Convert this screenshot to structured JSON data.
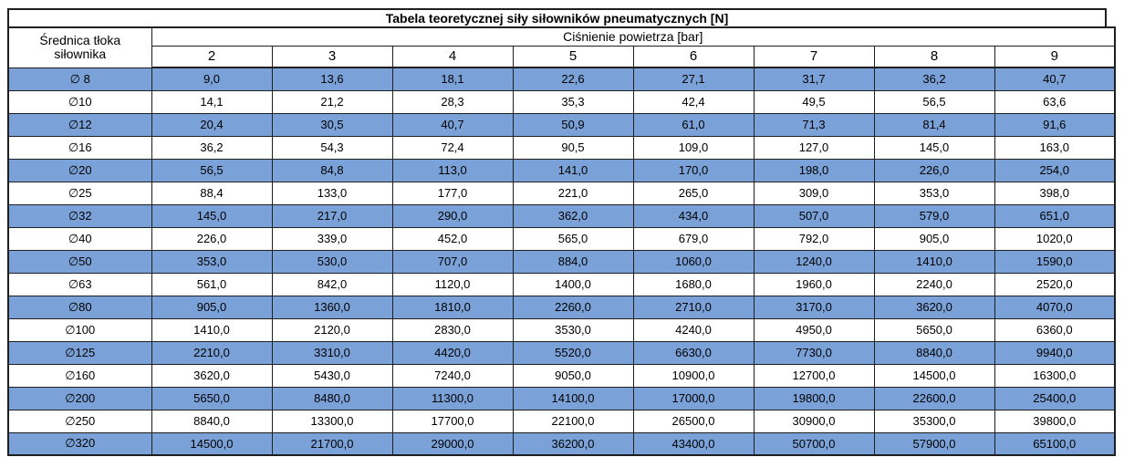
{
  "title": "Tabela teoretycznej siły siłowników pneumatycznych [N]",
  "table": {
    "row_header_line1": "Średnica tłoka",
    "row_header_line2": "siłownika",
    "col_group_header": "Ciśnienie powietrza [bar]",
    "pressure_columns": [
      "2",
      "3",
      "4",
      "5",
      "6",
      "7",
      "8",
      "9"
    ],
    "rows": [
      {
        "diameter": "∅ 8",
        "values": [
          "9,0",
          "13,6",
          "18,1",
          "22,6",
          "27,1",
          "31,7",
          "36,2",
          "40,7"
        ]
      },
      {
        "diameter": "∅10",
        "values": [
          "14,1",
          "21,2",
          "28,3",
          "35,3",
          "42,4",
          "49,5",
          "56,5",
          "63,6"
        ]
      },
      {
        "diameter": "∅12",
        "values": [
          "20,4",
          "30,5",
          "40,7",
          "50,9",
          "61,0",
          "71,3",
          "81,4",
          "91,6"
        ]
      },
      {
        "diameter": "∅16",
        "values": [
          "36,2",
          "54,3",
          "72,4",
          "90,5",
          "109,0",
          "127,0",
          "145,0",
          "163,0"
        ]
      },
      {
        "diameter": "∅20",
        "values": [
          "56,5",
          "84,8",
          "113,0",
          "141,0",
          "170,0",
          "198,0",
          "226,0",
          "254,0"
        ]
      },
      {
        "diameter": "∅25",
        "values": [
          "88,4",
          "133,0",
          "177,0",
          "221,0",
          "265,0",
          "309,0",
          "353,0",
          "398,0"
        ]
      },
      {
        "diameter": "∅32",
        "values": [
          "145,0",
          "217,0",
          "290,0",
          "362,0",
          "434,0",
          "507,0",
          "579,0",
          "651,0"
        ]
      },
      {
        "diameter": "∅40",
        "values": [
          "226,0",
          "339,0",
          "452,0",
          "565,0",
          "679,0",
          "792,0",
          "905,0",
          "1020,0"
        ]
      },
      {
        "diameter": "∅50",
        "values": [
          "353,0",
          "530,0",
          "707,0",
          "884,0",
          "1060,0",
          "1240,0",
          "1410,0",
          "1590,0"
        ]
      },
      {
        "diameter": "∅63",
        "values": [
          "561,0",
          "842,0",
          "1120,0",
          "1400,0",
          "1680,0",
          "1960,0",
          "2240,0",
          "2520,0"
        ]
      },
      {
        "diameter": "∅80",
        "values": [
          "905,0",
          "1360,0",
          "1810,0",
          "2260,0",
          "2710,0",
          "3170,0",
          "3620,0",
          "4070,0"
        ]
      },
      {
        "diameter": "∅100",
        "values": [
          "1410,0",
          "2120,0",
          "2830,0",
          "3530,0",
          "4240,0",
          "4950,0",
          "5650,0",
          "6360,0"
        ]
      },
      {
        "diameter": "∅125",
        "values": [
          "2210,0",
          "3310,0",
          "4420,0",
          "5520,0",
          "6630,0",
          "7730,0",
          "8840,0",
          "9940,0"
        ]
      },
      {
        "diameter": "∅160",
        "values": [
          "3620,0",
          "5430,0",
          "7240,0",
          "9050,0",
          "10900,0",
          "12700,0",
          "14500,0",
          "16300,0"
        ]
      },
      {
        "diameter": "∅200",
        "values": [
          "5650,0",
          "8480,0",
          "11300,0",
          "14100,0",
          "17000,0",
          "19800,0",
          "22600,0",
          "25400,0"
        ]
      },
      {
        "diameter": "∅250",
        "values": [
          "8840,0",
          "13300,0",
          "17700,0",
          "22100,0",
          "26500,0",
          "30900,0",
          "35300,0",
          "39800,0"
        ]
      },
      {
        "diameter": "∅320",
        "values": [
          "14500,0",
          "21700,0",
          "29000,0",
          "36200,0",
          "43400,0",
          "50700,0",
          "57900,0",
          "65100,0"
        ]
      }
    ]
  },
  "colors": {
    "row_highlight": "#7aa2d8",
    "border": "#1f1f1f",
    "background": "#ffffff",
    "text": "#000000"
  }
}
